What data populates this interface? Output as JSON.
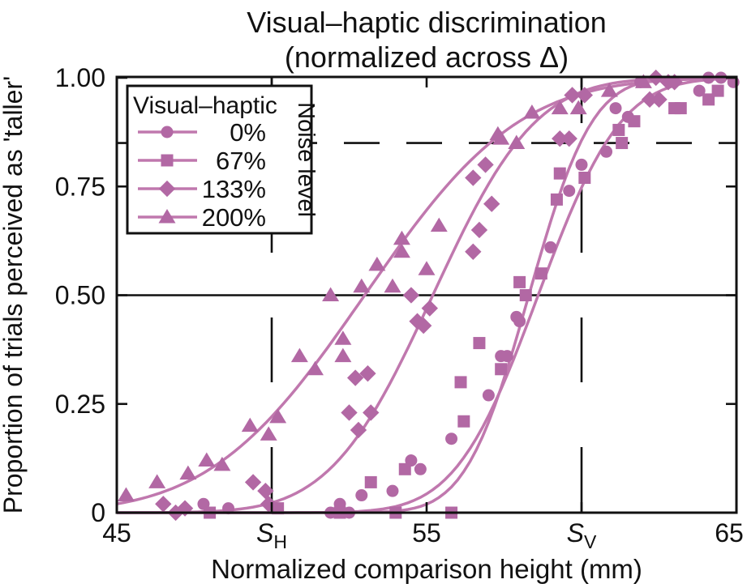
{
  "chart_data": {
    "type": "scatter",
    "title_line1": "Visual–haptic discrimination",
    "title_line2": "(normalized across Δ)",
    "xlabel": "Normalized comparison height (mm)",
    "ylabel": "Proportion of trials perceived as 'taller'",
    "xlim": [
      45,
      65
    ],
    "ylim": [
      0,
      1.0
    ],
    "grid": false,
    "xticks": [
      {
        "value": 45,
        "text": "45"
      },
      {
        "value": 50,
        "text": "S",
        "sub": "H",
        "italic": true
      },
      {
        "value": 55,
        "text": "55"
      },
      {
        "value": 60,
        "text": "S",
        "sub": "V",
        "italic": true
      },
      {
        "value": 65,
        "text": "65",
        "label_x": 899
      }
    ],
    "yticks": [
      {
        "value": 0,
        "text": "0"
      },
      {
        "value": 0.25,
        "text": "0.25"
      },
      {
        "value": 0.5,
        "text": "0.50"
      },
      {
        "value": 0.75,
        "text": "0.75"
      },
      {
        "value": 1.0,
        "text": "1.00"
      }
    ],
    "reference_lines": {
      "solid_horizontal_at": 0.5,
      "dashed_horizontal_at": 0.85,
      "dashed_vertical_at": [
        {
          "label": "S_H",
          "value": 50
        },
        {
          "label": "S_V",
          "value": 60
        }
      ]
    },
    "legend": {
      "title": "Visual–haptic",
      "side_label": "Noise level",
      "position": "upper-left"
    },
    "colors": {
      "marker": "#b268a4",
      "curve": "#c078ae",
      "axis": "#111111"
    },
    "series": [
      {
        "name": "0%",
        "marker": "circle",
        "curve_fit": {
          "type": "cumulative-gaussian",
          "mu": 58.3,
          "sigma": 1.6
        },
        "points": [
          [
            47.8,
            0.02
          ],
          [
            48.6,
            0.01
          ],
          [
            51.9,
            0.0
          ],
          [
            52.2,
            0.02
          ],
          [
            52.5,
            0.0
          ],
          [
            52.9,
            0.04
          ],
          [
            53.9,
            0.05
          ],
          [
            54.5,
            0.12
          ],
          [
            54.8,
            0.1
          ],
          [
            55.8,
            0.17
          ],
          [
            57.0,
            0.27
          ],
          [
            57.4,
            0.36
          ],
          [
            57.6,
            0.36
          ],
          [
            57.9,
            0.45
          ],
          [
            58.0,
            0.44
          ],
          [
            59.0,
            0.61
          ],
          [
            59.6,
            0.74
          ],
          [
            60.0,
            0.8
          ],
          [
            60.8,
            0.83
          ],
          [
            61.1,
            0.93
          ],
          [
            61.5,
            0.91
          ],
          [
            61.9,
            0.99
          ],
          [
            63.8,
            0.97
          ],
          [
            64.1,
            1.0
          ],
          [
            64.5,
            1.0
          ],
          [
            64.9,
            0.99
          ]
        ]
      },
      {
        "name": "67%",
        "marker": "square",
        "curve_fit": {
          "type": "cumulative-gaussian",
          "mu": 58.6,
          "sigma": 2.1
        },
        "points": [
          [
            48.0,
            0.0
          ],
          [
            50.2,
            0.01
          ],
          [
            52.2,
            0.0
          ],
          [
            53.2,
            0.07
          ],
          [
            54.0,
            0.0
          ],
          [
            54.3,
            0.1
          ],
          [
            55.8,
            0.0
          ],
          [
            56.1,
            0.3
          ],
          [
            56.2,
            0.21
          ],
          [
            56.7,
            0.39
          ],
          [
            57.4,
            0.33
          ],
          [
            58.0,
            0.53
          ],
          [
            58.2,
            0.5
          ],
          [
            58.7,
            0.55
          ],
          [
            59.2,
            0.72
          ],
          [
            59.3,
            0.78
          ],
          [
            60.1,
            0.77
          ],
          [
            61.2,
            0.88
          ],
          [
            61.3,
            0.85
          ],
          [
            61.7,
            0.9
          ],
          [
            63.0,
            0.93
          ],
          [
            63.2,
            0.93
          ],
          [
            64.1,
            0.95
          ],
          [
            64.4,
            0.97
          ]
        ]
      },
      {
        "name": "133%",
        "marker": "diamond",
        "curve_fit": {
          "type": "cumulative-gaussian",
          "mu": 55.2,
          "sigma": 2.6
        },
        "points": [
          [
            46.5,
            0.02
          ],
          [
            46.9,
            0.0
          ],
          [
            47.2,
            0.01
          ],
          [
            49.4,
            0.07
          ],
          [
            49.8,
            0.05
          ],
          [
            49.9,
            0.02
          ],
          [
            52.5,
            0.23
          ],
          [
            52.7,
            0.31
          ],
          [
            52.8,
            0.19
          ],
          [
            53.1,
            0.32
          ],
          [
            53.2,
            0.23
          ],
          [
            54.5,
            0.5
          ],
          [
            54.7,
            0.44
          ],
          [
            54.9,
            0.43
          ],
          [
            55.1,
            0.47
          ],
          [
            56.5,
            0.6
          ],
          [
            56.5,
            0.77
          ],
          [
            56.7,
            0.65
          ],
          [
            56.9,
            0.8
          ],
          [
            57.1,
            0.71
          ],
          [
            59.3,
            0.86
          ],
          [
            59.6,
            0.86
          ],
          [
            59.7,
            0.96
          ],
          [
            60.1,
            0.96
          ],
          [
            62.2,
            0.95
          ],
          [
            62.4,
            1.0
          ],
          [
            62.5,
            0.95
          ],
          [
            62.8,
            0.99
          ],
          [
            63.0,
            0.99
          ]
        ]
      },
      {
        "name": "200%",
        "marker": "triangle",
        "curve_fit": {
          "type": "cumulative-gaussian",
          "mu": 53.0,
          "sigma": 3.9
        },
        "points": [
          [
            45.3,
            0.04
          ],
          [
            46.3,
            0.07
          ],
          [
            47.3,
            0.09
          ],
          [
            47.9,
            0.12
          ],
          [
            48.4,
            0.11
          ],
          [
            49.3,
            0.2
          ],
          [
            49.9,
            0.18
          ],
          [
            50.2,
            0.22
          ],
          [
            50.9,
            0.36
          ],
          [
            51.4,
            0.33
          ],
          [
            51.9,
            0.5
          ],
          [
            52.3,
            0.4
          ],
          [
            52.3,
            0.36
          ],
          [
            52.9,
            0.52
          ],
          [
            53.4,
            0.57
          ],
          [
            53.9,
            0.52
          ],
          [
            54.2,
            0.63
          ],
          [
            54.2,
            0.6
          ],
          [
            55.0,
            0.56
          ],
          [
            55.4,
            0.66
          ],
          [
            57.3,
            0.87
          ],
          [
            57.4,
            0.86
          ],
          [
            57.9,
            0.85
          ],
          [
            58.4,
            0.92
          ],
          [
            59.3,
            0.93
          ],
          [
            59.9,
            0.93
          ],
          [
            60.9,
            0.97
          ],
          [
            62.0,
            0.99
          ]
        ]
      }
    ]
  }
}
